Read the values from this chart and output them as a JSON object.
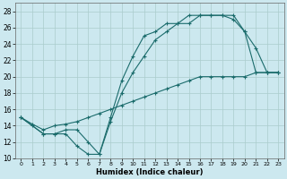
{
  "xlabel": "Humidex (Indice chaleur)",
  "bg_color": "#cce8ef",
  "grid_color": "#aacccc",
  "line_color": "#1a6b6b",
  "xlim": [
    -0.5,
    23.5
  ],
  "ylim": [
    10,
    29
  ],
  "xticks": [
    0,
    1,
    2,
    3,
    4,
    5,
    6,
    7,
    8,
    9,
    10,
    11,
    12,
    13,
    14,
    15,
    16,
    17,
    18,
    19,
    20,
    21,
    22,
    23
  ],
  "yticks": [
    10,
    12,
    14,
    16,
    18,
    20,
    22,
    24,
    26,
    28
  ],
  "line1_x": [
    0,
    1,
    2,
    3,
    4,
    5,
    6,
    7,
    8,
    9,
    10,
    11,
    12,
    13,
    14,
    15,
    16,
    17,
    18,
    19,
    20,
    21,
    22,
    23
  ],
  "line1_y": [
    15,
    14,
    13,
    13,
    13,
    11.5,
    10.5,
    10.5,
    15,
    19.5,
    22.5,
    25,
    25.5,
    26.5,
    26.5,
    27.5,
    27.5,
    27.5,
    27.5,
    27,
    25.5,
    23.5,
    20.5,
    20.5
  ],
  "line2_x": [
    0,
    2,
    3,
    4,
    5,
    6,
    7,
    8,
    9,
    10,
    11,
    12,
    13,
    14,
    15,
    16,
    17,
    18,
    19,
    20,
    21,
    22,
    23
  ],
  "line2_y": [
    15,
    13,
    13,
    13.5,
    13.5,
    12,
    10.5,
    14.5,
    18,
    20.5,
    22.5,
    24.5,
    25.5,
    26.5,
    26.5,
    27.5,
    27.5,
    27.5,
    27.5,
    25.5,
    20.5,
    20.5,
    20.5
  ],
  "line3_x": [
    0,
    1,
    2,
    3,
    4,
    5,
    6,
    7,
    8,
    9,
    10,
    11,
    12,
    13,
    14,
    15,
    16,
    17,
    18,
    19,
    20,
    21,
    22,
    23
  ],
  "line3_y": [
    15,
    14.2,
    13.5,
    14,
    14.2,
    14.5,
    15,
    15.5,
    16,
    16.5,
    17,
    17.5,
    18,
    18.5,
    19,
    19.5,
    20,
    20,
    20,
    20,
    20,
    20.5,
    20.5,
    20.5
  ]
}
